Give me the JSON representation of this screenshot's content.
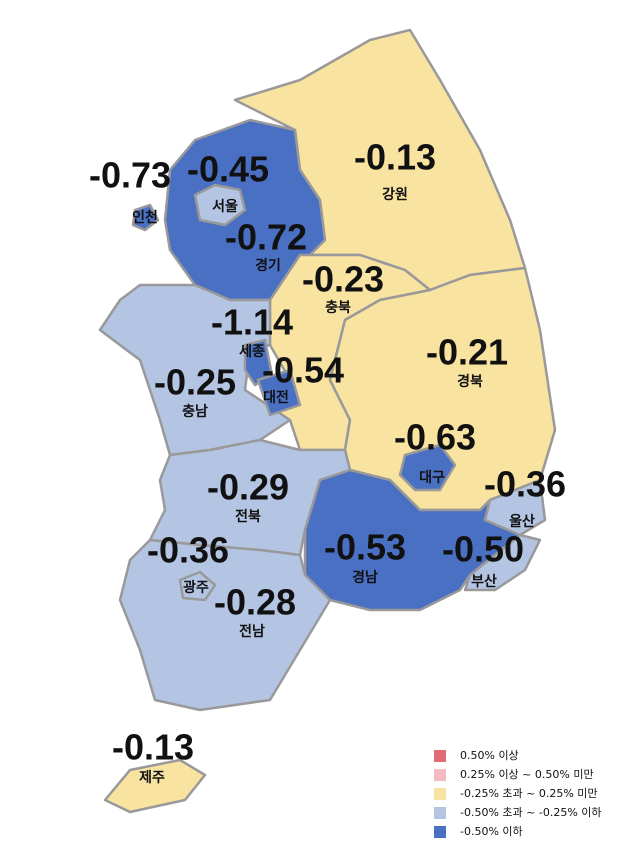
{
  "regions": [
    {
      "name": "인천",
      "value": "-0.73",
      "color": "#4a70c4"
    },
    {
      "name": "서울",
      "value": "-0.45",
      "color": "#b4c5e3"
    },
    {
      "name": "경기",
      "value": "-0.72",
      "color": "#4a70c4"
    },
    {
      "name": "강원",
      "value": "-0.13",
      "color": "#f9e3a1"
    },
    {
      "name": "충북",
      "value": "-0.23",
      "color": "#f9e3a1"
    },
    {
      "name": "세종",
      "value": "-1.14",
      "color": "#4a70c4"
    },
    {
      "name": "대전",
      "value": "-0.54",
      "color": "#4a70c4"
    },
    {
      "name": "충남",
      "value": "-0.25",
      "color": "#b4c5e3"
    },
    {
      "name": "경북",
      "value": "-0.21",
      "color": "#f9e3a1"
    },
    {
      "name": "대구",
      "value": "-0.63",
      "color": "#4a70c4"
    },
    {
      "name": "울산",
      "value": "-0.36",
      "color": "#b4c5e3"
    },
    {
      "name": "전북",
      "value": "-0.29",
      "color": "#b4c5e3"
    },
    {
      "name": "경남",
      "value": "-0.53",
      "color": "#4a70c4"
    },
    {
      "name": "부산",
      "value": "-0.50",
      "color": "#b4c5e3"
    },
    {
      "name": "광주",
      "value": "-0.36",
      "color": "#b4c5e3"
    },
    {
      "name": "전남",
      "value": "-0.28",
      "color": "#b4c5e3"
    },
    {
      "name": "제주",
      "value": "-0.13",
      "color": "#f9e3a1"
    }
  ],
  "legend": [
    {
      "label": "0.50% 이상",
      "color": "#e06b75"
    },
    {
      "label": "0.25% 이상 ~ 0.50% 미만",
      "color": "#f5b9c1"
    },
    {
      "label": "-0.25% 초과 ~ 0.25% 미만",
      "color": "#f9e3a1"
    },
    {
      "label": "-0.50% 초과 ~ -0.25% 이하",
      "color": "#b4c5e3"
    },
    {
      "label": "-0.50% 이하",
      "color": "#4a70c4"
    }
  ]
}
